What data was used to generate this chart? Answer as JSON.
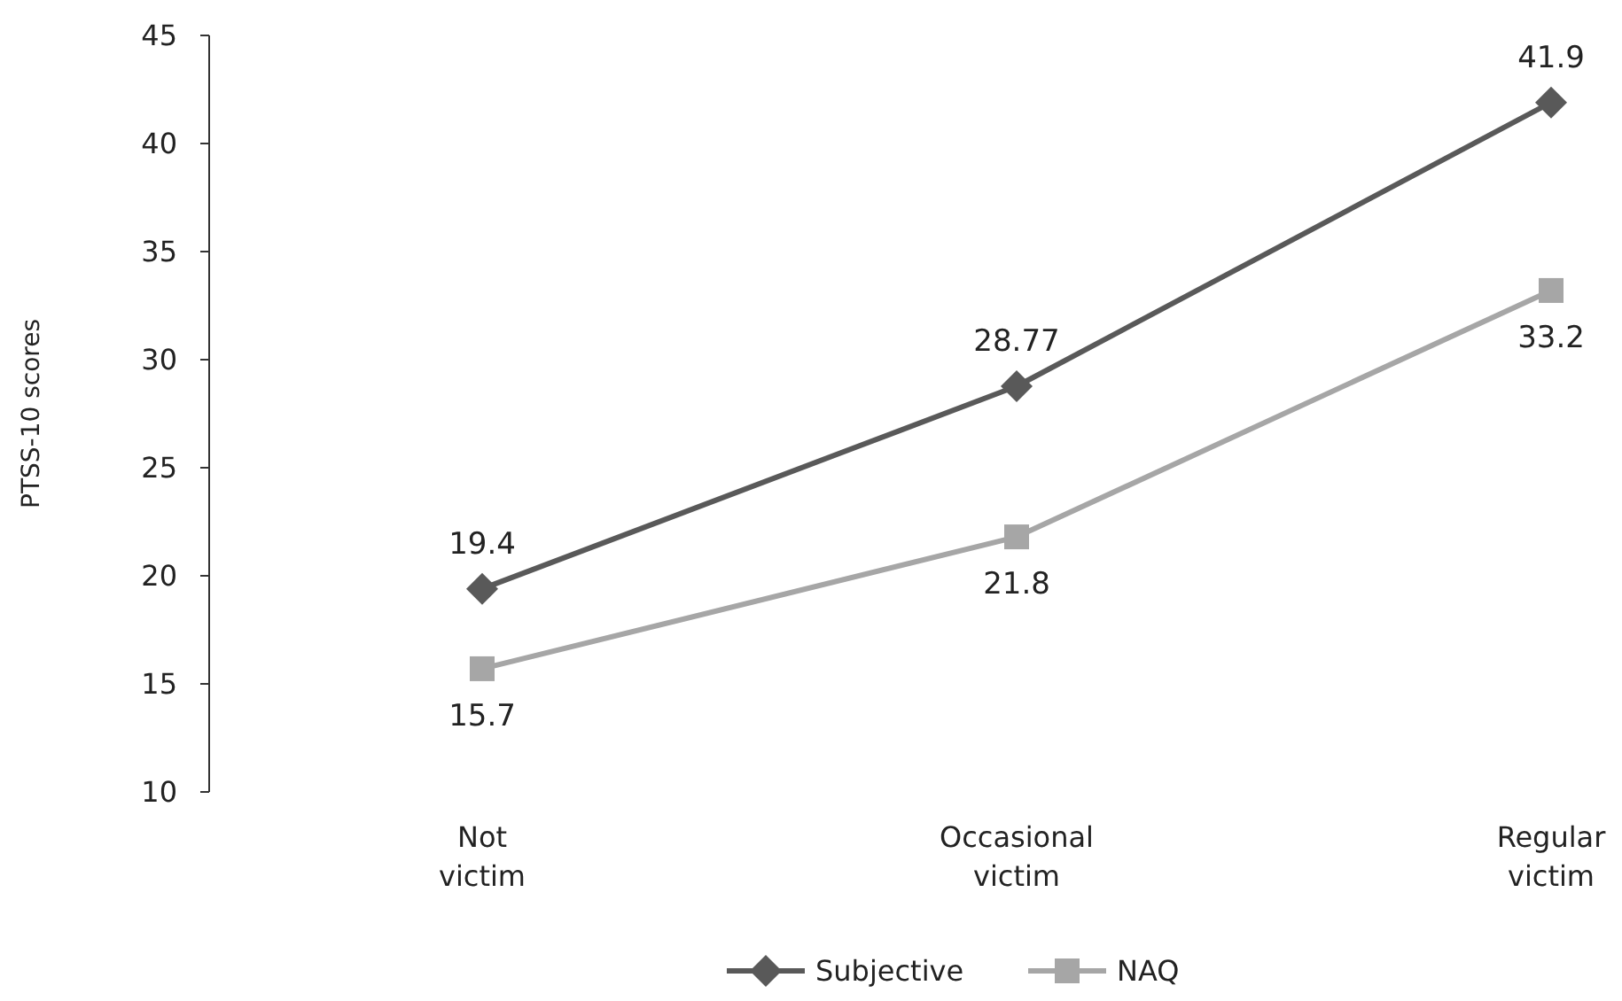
{
  "chart_data": {
    "type": "line",
    "ylabel": "PTSS-10 scores",
    "categories": [
      "Not victim",
      "Occasional victim",
      "Regular victim"
    ],
    "series": [
      {
        "name": "Subjective",
        "color": "#595959",
        "marker": "diamond",
        "values": [
          19.4,
          28.77,
          41.9
        ]
      },
      {
        "name": "NAQ",
        "color": "#a6a6a6",
        "marker": "square",
        "values": [
          15.7,
          21.8,
          33.2
        ]
      }
    ],
    "ylim": [
      10,
      45
    ],
    "yticks": [
      10,
      15,
      20,
      25,
      30,
      35,
      40,
      45
    ],
    "grid": false,
    "legend": "bottom",
    "data_labels": true
  }
}
